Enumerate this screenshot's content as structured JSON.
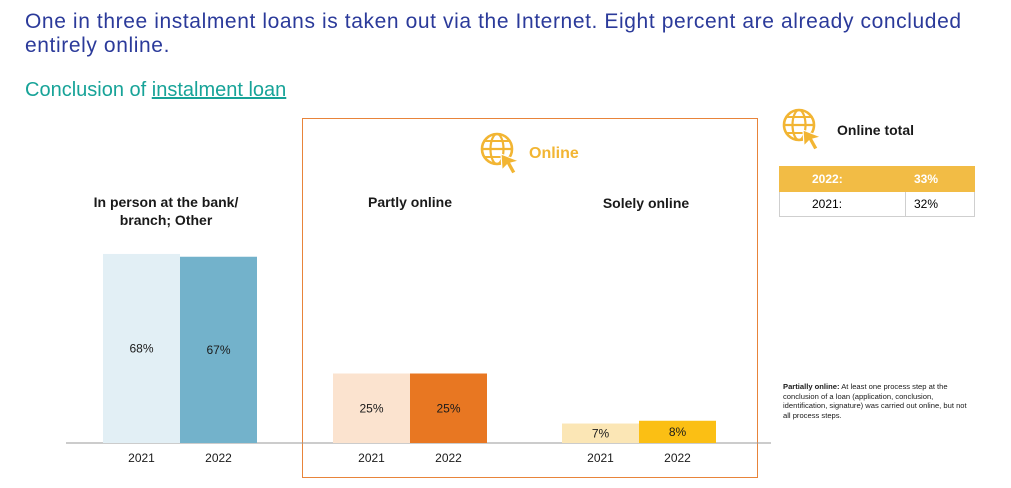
{
  "headline": "One in three instalment loans is taken out via the Internet. Eight percent are already concluded entirely online.",
  "subtitle": {
    "prefix": "Conclusion of ",
    "link": "instalment loan"
  },
  "online_label": "Online",
  "colors": {
    "headline": "#2b3a9a",
    "subtitle": "#17a398",
    "box": "#e8843a",
    "online": "#f2b533"
  },
  "chart_data": {
    "type": "bar",
    "groups": [
      {
        "label": "In person at the bank/\nbranch; Other",
        "categories": [
          "2021",
          "2022"
        ],
        "values": [
          68,
          67
        ],
        "labels": [
          "68%",
          "67%"
        ],
        "colors": [
          "#e2eff5",
          "#73b2cb"
        ]
      },
      {
        "label": "Partly online",
        "categories": [
          "2021",
          "2022"
        ],
        "values": [
          25,
          25
        ],
        "labels": [
          "25%",
          "25%"
        ],
        "colors": [
          "#fbe3cf",
          "#e87722"
        ]
      },
      {
        "label": "Solely online",
        "categories": [
          "2021",
          "2022"
        ],
        "values": [
          7,
          8
        ],
        "labels": [
          "7%",
          "8%"
        ],
        "colors": [
          "#fbe6b5",
          "#fbbf14"
        ]
      }
    ]
  },
  "online_total": {
    "title": "Online total",
    "rows": [
      {
        "year": "2022:",
        "value": "33%",
        "highlight": true
      },
      {
        "year": "2021:",
        "value": "32%",
        "highlight": false
      }
    ]
  },
  "footnote": {
    "term": "Partially online:",
    "text": " At least one process step at the conclusion of a loan (application, conclusion, identification, signature) was carried out online, but not all process steps."
  }
}
